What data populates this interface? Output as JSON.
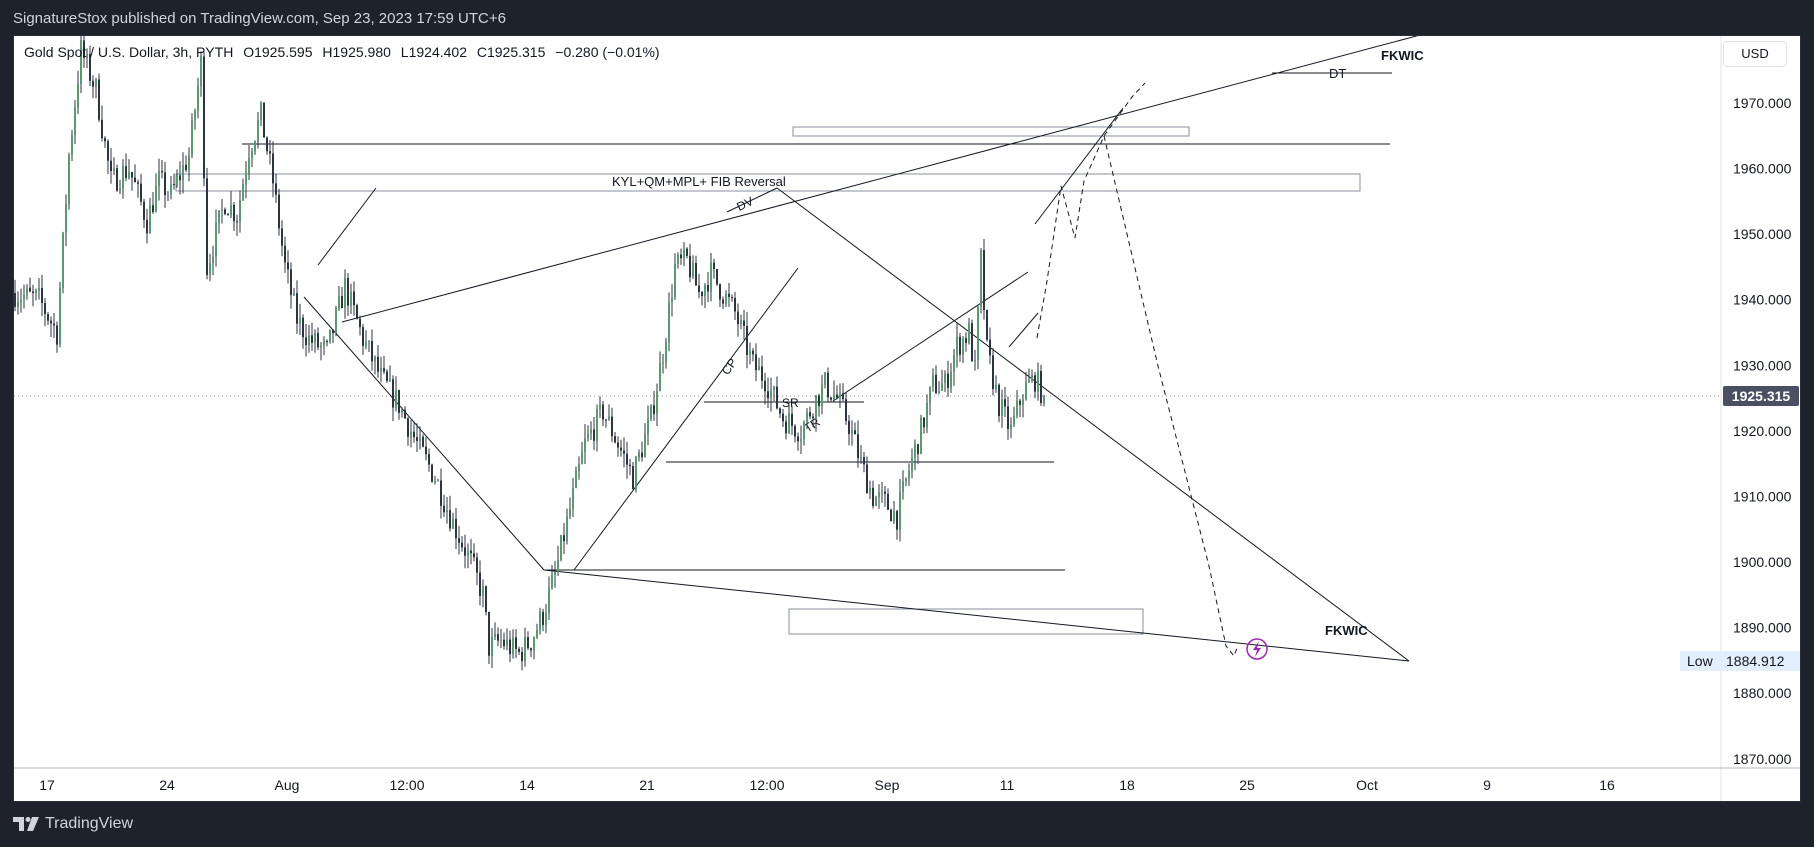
{
  "header": {
    "published": "SignatureStox published on TradingView.com, Sep 23, 2023 17:59 UTC+6"
  },
  "legend": {
    "symbol": "Gold Spot / U.S. Dollar, 3h, PYTH",
    "open": "O1925.595",
    "high": "H1925.980",
    "low": "L1924.402",
    "close": "C1925.315",
    "change": "−0.280 (−0.01%)"
  },
  "currency": "USD",
  "footer": {
    "brand": "TradingView"
  },
  "colors": {
    "up": "#5b9a6e",
    "down": "#2e3440",
    "price_label": "#4a5061",
    "low_label_bg": "#e3effd",
    "accent_icon": "#9c27b0"
  },
  "chart_data": {
    "type": "candlestick",
    "price_axis": {
      "ticks": [
        "1870.000",
        "1880.000",
        "1890.000",
        "1900.000",
        "1910.000",
        "1920.000",
        "1930.000",
        "1940.000",
        "1950.000",
        "1960.000",
        "1970.000"
      ],
      "range": [
        1868.6,
        1980.2
      ]
    },
    "time_axis": {
      "ticks": [
        {
          "label": "17",
          "bar": 11
        },
        {
          "label": "24",
          "bar": 51
        },
        {
          "label": "Aug",
          "bar": 91
        },
        {
          "label": "12:00",
          "bar": 131
        },
        {
          "label": "14",
          "bar": 171
        },
        {
          "label": "21",
          "bar": 211
        },
        {
          "label": "12:00",
          "bar": 251
        },
        {
          "label": "Sep",
          "bar": 291
        },
        {
          "label": "11",
          "bar": 331
        },
        {
          "label": "18",
          "bar": 371
        },
        {
          "label": "25",
          "bar": 411
        },
        {
          "label": "Oct",
          "bar": 451
        },
        {
          "label": "9",
          "bar": 491
        },
        {
          "label": "16",
          "bar": 531
        }
      ]
    },
    "current_price": "1925.315",
    "low_marker": {
      "label": "Low",
      "value": "1884.912"
    },
    "price_path": [
      [
        0,
        1941
      ],
      [
        8,
        1940
      ],
      [
        14,
        1935
      ],
      [
        18,
        1962
      ],
      [
        22,
        1978
      ],
      [
        27,
        1972
      ],
      [
        32,
        1958
      ],
      [
        38,
        1960
      ],
      [
        44,
        1952
      ],
      [
        48,
        1958
      ],
      [
        52,
        1956
      ],
      [
        58,
        1962
      ],
      [
        62,
        1976
      ],
      [
        64,
        1945
      ],
      [
        70,
        1955
      ],
      [
        74,
        1953
      ],
      [
        78,
        1963
      ],
      [
        82,
        1968
      ],
      [
        86,
        1958
      ],
      [
        90,
        1945
      ],
      [
        94,
        1937
      ],
      [
        98,
        1934
      ],
      [
        104,
        1932
      ],
      [
        110,
        1942
      ],
      [
        116,
        1934
      ],
      [
        122,
        1928
      ],
      [
        128,
        1924
      ],
      [
        134,
        1918
      ],
      [
        140,
        1913
      ],
      [
        146,
        1906
      ],
      [
        152,
        1900
      ],
      [
        156,
        1895
      ],
      [
        158,
        1887
      ],
      [
        162,
        1888
      ],
      [
        168,
        1886
      ],
      [
        172,
        1888
      ],
      [
        176,
        1892
      ],
      [
        180,
        1898
      ],
      [
        186,
        1910
      ],
      [
        190,
        1918
      ],
      [
        196,
        1923
      ],
      [
        202,
        1917
      ],
      [
        206,
        1913
      ],
      [
        212,
        1922
      ],
      [
        216,
        1932
      ],
      [
        220,
        1945
      ],
      [
        224,
        1946
      ],
      [
        228,
        1941
      ],
      [
        232,
        1944
      ],
      [
        236,
        1941
      ],
      [
        240,
        1938
      ],
      [
        246,
        1930
      ],
      [
        250,
        1928
      ],
      [
        256,
        1922
      ],
      [
        262,
        1920
      ],
      [
        266,
        1924
      ],
      [
        270,
        1927
      ],
      [
        274,
        1925
      ],
      [
        278,
        1921
      ],
      [
        282,
        1915
      ],
      [
        286,
        1910
      ],
      [
        290,
        1909
      ],
      [
        294,
        1907
      ],
      [
        298,
        1914
      ],
      [
        302,
        1920
      ],
      [
        306,
        1927
      ],
      [
        310,
        1927
      ],
      [
        314,
        1933
      ],
      [
        318,
        1935
      ],
      [
        320,
        1929
      ],
      [
        322,
        1946
      ],
      [
        324,
        1932
      ],
      [
        328,
        1924
      ],
      [
        332,
        1920
      ],
      [
        336,
        1926
      ],
      [
        340,
        1928
      ],
      [
        343,
        1925.3
      ]
    ],
    "annotations": [
      {
        "type": "label",
        "text": "KYL+QM+MPL+ FIB Reversal"
      },
      {
        "type": "label",
        "text": "DT"
      },
      {
        "type": "label",
        "text": "FKWIC"
      },
      {
        "type": "label",
        "text": "DV"
      },
      {
        "type": "label",
        "text": "CP"
      },
      {
        "type": "label",
        "text": "SR"
      },
      {
        "type": "label",
        "text": "TR"
      },
      {
        "type": "label",
        "text": "FKWIC"
      }
    ]
  }
}
